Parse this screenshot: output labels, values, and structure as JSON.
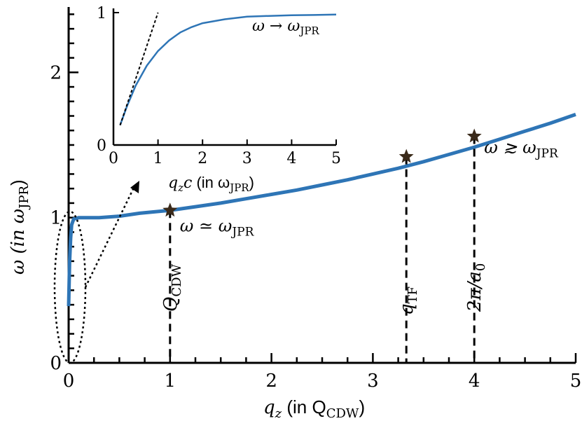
{
  "colors": {
    "curve": "#2e75b6",
    "star": "#3a2a1a",
    "axis": "#000000"
  },
  "chart_data": [
    {
      "type": "line",
      "xlabel": "q_z (in Q_CDW)",
      "ylabel": "ω (in ω_JPR)",
      "xlim": [
        0,
        5
      ],
      "ylim": [
        0,
        2.45
      ],
      "x_ticks": [
        "0",
        "1",
        "2",
        "3",
        "4",
        "5"
      ],
      "y_ticks": [
        "0",
        "1",
        "2"
      ],
      "series": [
        {
          "x": [
            0.0,
            0.01,
            0.02,
            0.03,
            0.05,
            0.1,
            0.2,
            0.3,
            0.5,
            0.7,
            1.0,
            1.25,
            1.5,
            1.75,
            2.0,
            2.25,
            2.5,
            2.75,
            3.0,
            3.25,
            3.5,
            3.75,
            4.0,
            4.25,
            4.5,
            4.75,
            5.0
          ],
          "y": [
            0.39,
            0.7,
            0.86,
            0.95,
            0.99,
            1.0,
            1.0,
            1.0,
            1.01,
            1.03,
            1.05,
            1.075,
            1.1,
            1.13,
            1.16,
            1.19,
            1.225,
            1.26,
            1.3,
            1.34,
            1.385,
            1.435,
            1.485,
            1.54,
            1.595,
            1.65,
            1.71
          ]
        }
      ],
      "markers": [
        {
          "x": 1.0,
          "y": 1.05,
          "label_base": "ω ≃ ω",
          "label_sub": "JPR",
          "axis_label": "Q",
          "axis_sub": "CDW"
        },
        {
          "x": 3.33,
          "y": 1.42,
          "label_base": "",
          "label_sub": "",
          "axis_label": "q",
          "axis_sub": "TF"
        },
        {
          "x": 4.0,
          "y": 1.56,
          "label_base": "ω ≳ ω",
          "label_sub": "JPR",
          "axis_label": "2π/a",
          "axis_sub": "0"
        }
      ]
    },
    {
      "type": "line",
      "inset": true,
      "xlabel": "q_z c (in ω_JPR)",
      "xlim": [
        0,
        5
      ],
      "ylim": [
        0,
        1.0
      ],
      "x_ticks": [
        "0",
        "1",
        "2",
        "3",
        "4",
        "5"
      ],
      "y_ticks": [
        "0",
        "1"
      ],
      "annotation": {
        "base": "ω → ω",
        "sub": "JPR"
      },
      "series": [
        {
          "name": "curve",
          "x": [
            0.15,
            0.3,
            0.5,
            0.75,
            1.0,
            1.25,
            1.5,
            1.75,
            2.0,
            2.5,
            3.0,
            3.5,
            4.0,
            4.5,
            5.0
          ],
          "y": [
            0.15,
            0.29,
            0.45,
            0.6,
            0.71,
            0.79,
            0.85,
            0.89,
            0.92,
            0.95,
            0.97,
            0.975,
            0.98,
            0.982,
            0.985
          ]
        },
        {
          "name": "asymptote",
          "x": [
            0.15,
            1.0
          ],
          "y": [
            0.15,
            1.0
          ]
        }
      ]
    }
  ],
  "labels": {
    "xlabel_main": "q",
    "xlabel_main_sub": "z",
    "xlabel_main_rest": " (in Q",
    "xlabel_main_sub2": "CDW",
    "xlabel_close": ")",
    "ylabel_main": "ω (in ω",
    "ylabel_main_sub": "JPR",
    "ylabel_close": ")",
    "inset_xlabel_q": "q",
    "inset_xlabel_sub": "z",
    "inset_xlabel_c": "c",
    "inset_xlabel_rest": " (in ω",
    "inset_xlabel_sub2": "JPR",
    "inset_xlabel_close": ")"
  }
}
